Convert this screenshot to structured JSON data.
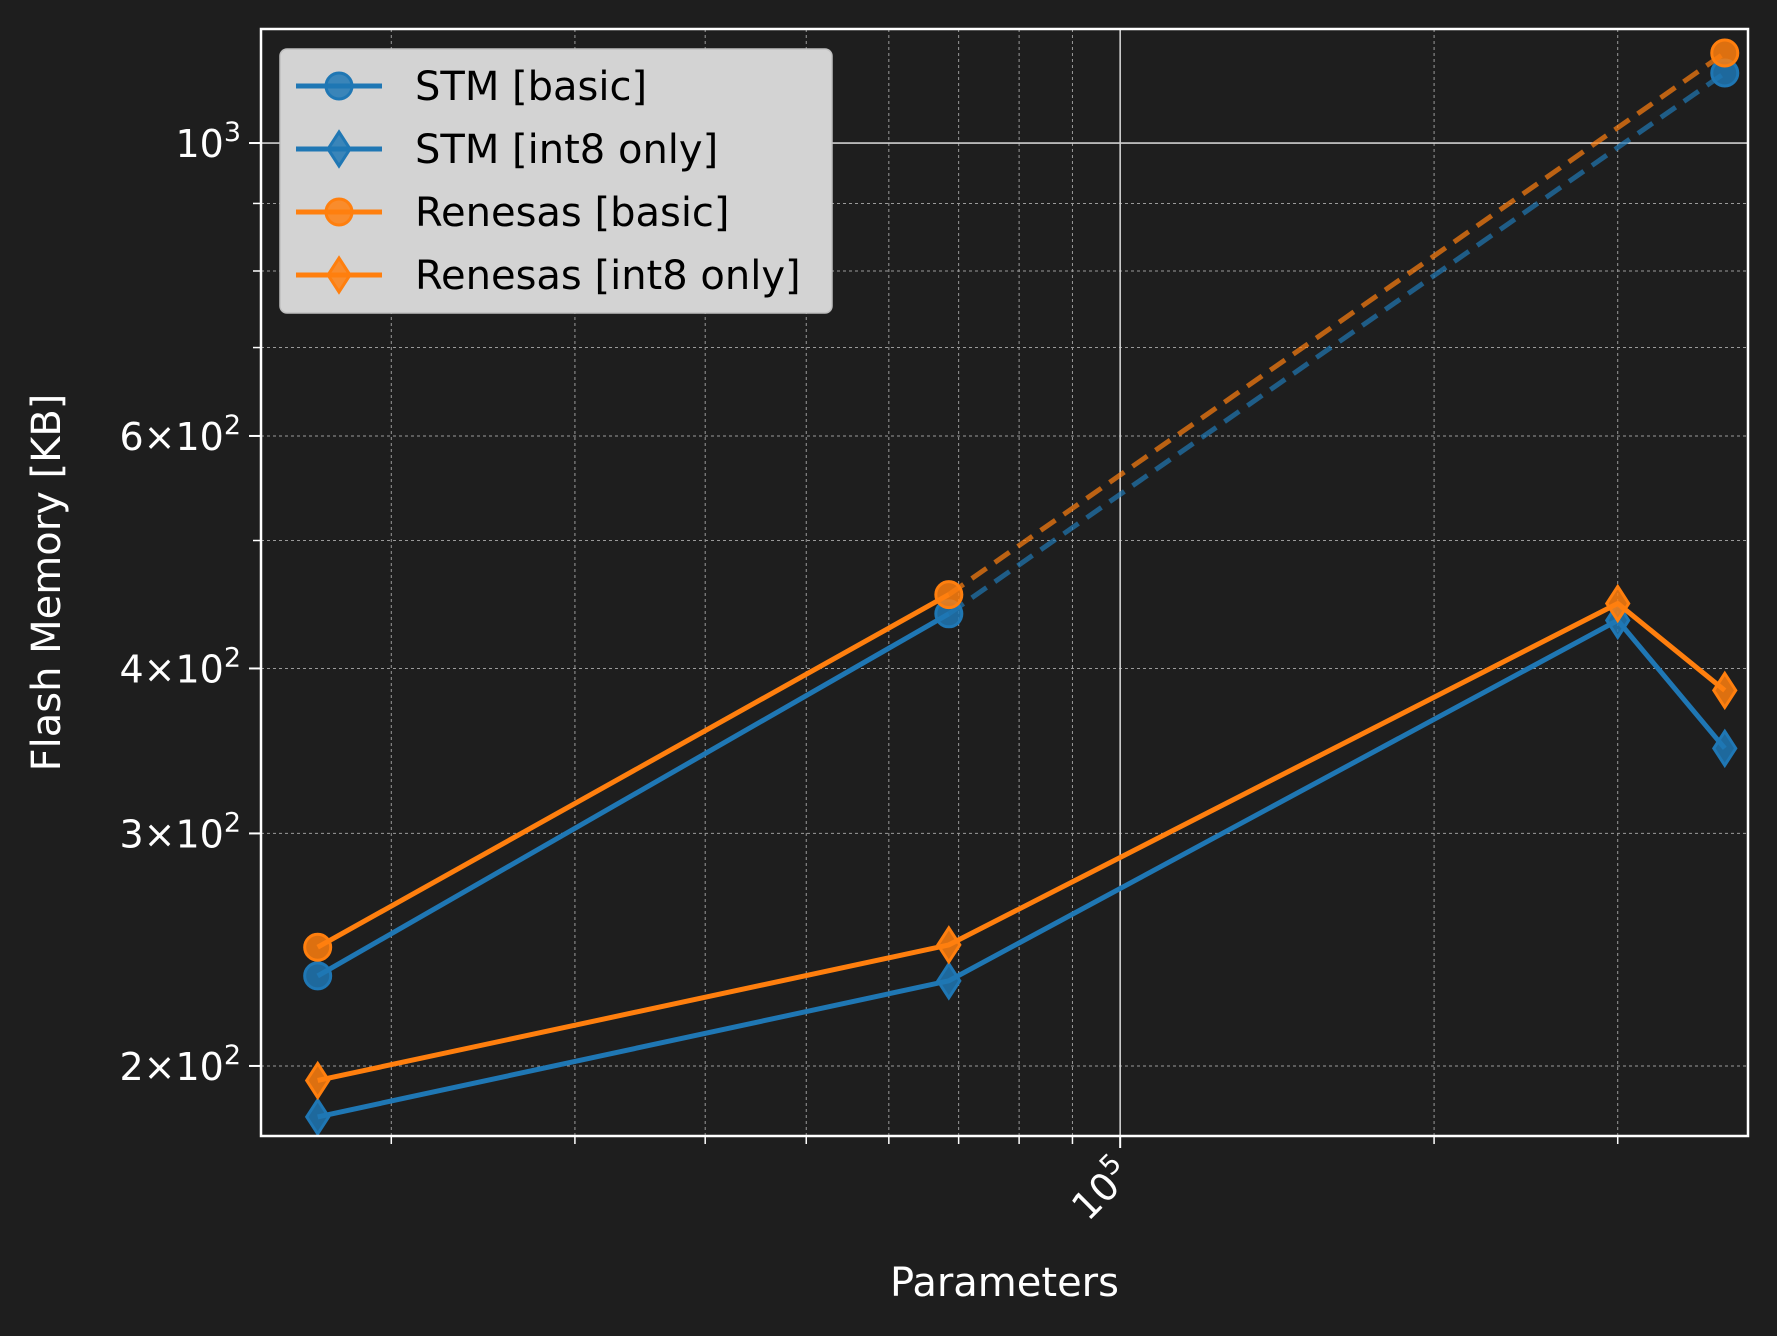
{
  "chart_data": {
    "type": "line",
    "xlabel": "Parameters",
    "ylabel": "Flash Memory [KB]",
    "xscale": "log",
    "yscale": "log",
    "xlim": [
      15000,
      400000
    ],
    "ylim": [
      177,
      1220
    ],
    "xticks": [
      {
        "value": 100000,
        "label": "10",
        "exp": "5"
      }
    ],
    "yticks": [
      {
        "value": 1000,
        "label": "10",
        "exp": "3"
      },
      {
        "value": 600,
        "label": "6×10",
        "exp": "2"
      },
      {
        "value": 400,
        "label": "4×10",
        "exp": "2"
      },
      {
        "value": 300,
        "label": "3×10",
        "exp": "2"
      },
      {
        "value": 200,
        "label": "2×10",
        "exp": "2"
      }
    ],
    "grid": true,
    "legend_position": "top-left",
    "series": [
      {
        "name": "STM [basic]",
        "color": "#1f77b4",
        "marker": "circle",
        "x": [
          17000,
          68500,
          380000
        ],
        "y": [
          234,
          440,
          1130
        ],
        "solid_through_index": 1,
        "dashed_after_index": 1
      },
      {
        "name": "STM [int8 only]",
        "color": "#1f77b4",
        "marker": "diamond",
        "x": [
          17000,
          68500,
          300000,
          380000
        ],
        "y": [
          183,
          232,
          435,
          348
        ],
        "solid_through_index": 3
      },
      {
        "name": "Renesas [basic]",
        "color": "#ff7f0e",
        "marker": "circle",
        "x": [
          17000,
          68500,
          380000
        ],
        "y": [
          246,
          455,
          1170
        ],
        "solid_through_index": 1,
        "dashed_after_index": 1
      },
      {
        "name": "Renesas [int8 only]",
        "color": "#ff7f0e",
        "marker": "diamond",
        "x": [
          17000,
          68500,
          300000,
          380000
        ],
        "y": [
          195,
          247,
          448,
          385
        ],
        "solid_through_index": 3
      }
    ]
  }
}
